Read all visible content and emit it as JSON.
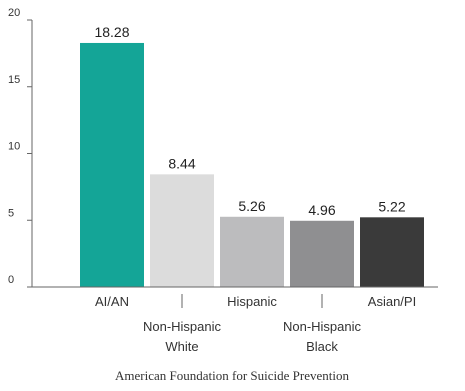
{
  "chart_data": {
    "type": "bar",
    "categories": [
      "AI/AN",
      "Non-Hispanic White",
      "Hispanic",
      "Non-Hispanic Black",
      "Asian/PI"
    ],
    "category_label_lines": [
      [
        "AI/AN"
      ],
      [
        "Non-Hispanic",
        "White"
      ],
      [
        "Hispanic"
      ],
      [
        "Non-Hispanic",
        "Black"
      ],
      [
        "Asian/PI"
      ]
    ],
    "values": [
      18.28,
      8.44,
      5.26,
      4.96,
      5.22
    ],
    "value_labels": [
      "18.28",
      "8.44",
      "5.26",
      "4.96",
      "5.22"
    ],
    "bar_colors": [
      "#14a597",
      "#dcdcdc",
      "#bcbcbe",
      "#8f8f91",
      "#3a3a3a"
    ],
    "ylim": [
      0,
      20
    ],
    "yticks": [
      0,
      5,
      10,
      15,
      20
    ],
    "ytick_labels": [
      "0",
      "5",
      "10",
      "15",
      "20"
    ],
    "title": "",
    "xlabel": "",
    "ylabel": "",
    "grid": false,
    "legend": "none"
  },
  "footer": {
    "source": "American Foundation for Suicide Prevention"
  }
}
